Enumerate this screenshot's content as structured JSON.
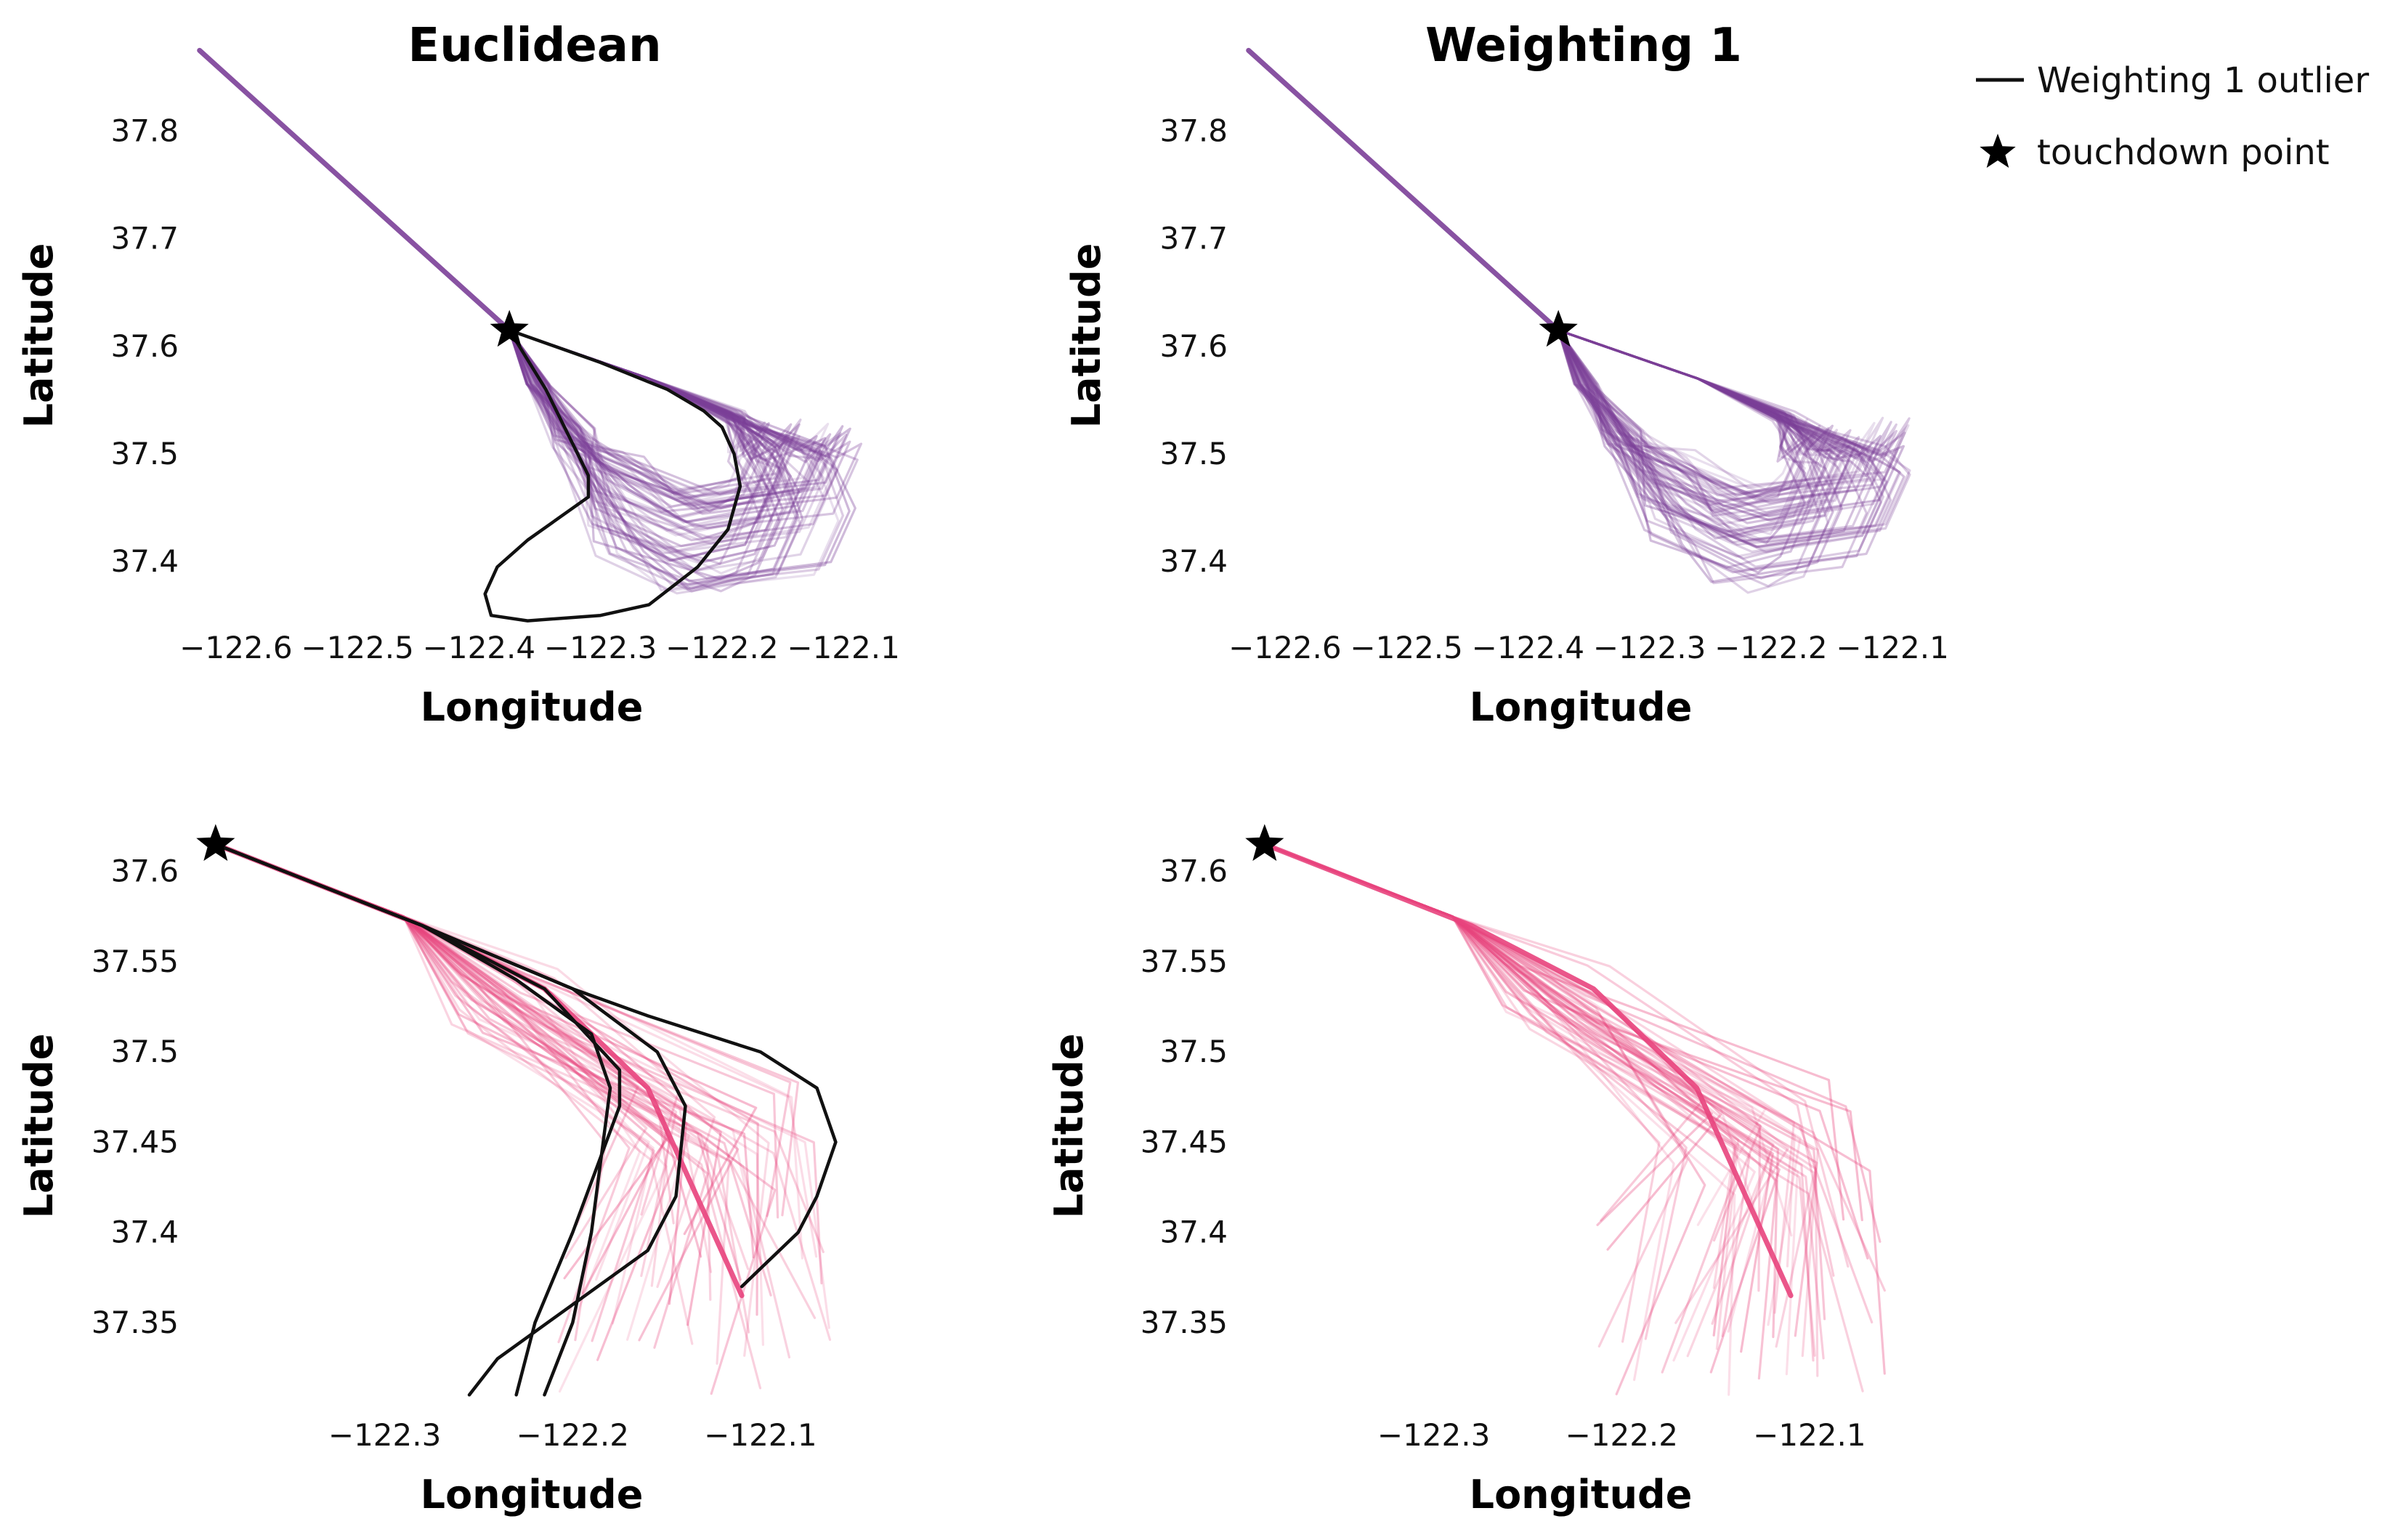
{
  "legend": {
    "outlier_label": "Weighting 1 outlier",
    "touchdown_label": "touchdown point",
    "outlier_color": "#111111"
  },
  "chart_data": [
    {
      "id": "top-left",
      "type": "line",
      "title": "Euclidean",
      "xlabel": "Longitude",
      "ylabel": "Latitude",
      "xlim": [
        -122.64,
        -122.06
      ],
      "ylim": [
        37.34,
        37.88
      ],
      "xticks": [
        -122.6,
        -122.5,
        -122.4,
        -122.3,
        -122.2,
        -122.1
      ],
      "xtick_labels": [
        "−122.6",
        "−122.5",
        "−122.4",
        "−122.3",
        "−122.2",
        "−122.1"
      ],
      "yticks": [
        37.4,
        37.5,
        37.6,
        37.7,
        37.8
      ],
      "ytick_labels": [
        "37.4",
        "37.5",
        "37.6",
        "37.7",
        "37.8"
      ],
      "color": "#7b3f98",
      "bundle_count": 60,
      "touchdown": [
        -122.375,
        37.615
      ],
      "shared_path": [
        [
          -122.63,
          37.875
        ],
        [
          -122.375,
          37.615
        ]
      ],
      "bundle_type": "loop",
      "outliers": [
        [
          [
            -122.375,
            37.615
          ],
          [
            -122.345,
            37.56
          ],
          [
            -122.31,
            37.48
          ],
          [
            -122.31,
            37.46
          ],
          [
            -122.36,
            37.42
          ],
          [
            -122.385,
            37.395
          ],
          [
            -122.395,
            37.37
          ],
          [
            -122.39,
            37.35
          ],
          [
            -122.36,
            37.345
          ],
          [
            -122.3,
            37.35
          ],
          [
            -122.26,
            37.36
          ],
          [
            -122.22,
            37.395
          ],
          [
            -122.195,
            37.43
          ],
          [
            -122.185,
            37.47
          ],
          [
            -122.19,
            37.5
          ],
          [
            -122.2,
            37.525
          ],
          [
            -122.215,
            37.54
          ],
          [
            -122.245,
            37.56
          ],
          [
            -122.3,
            37.585
          ],
          [
            -122.375,
            37.615
          ]
        ]
      ]
    },
    {
      "id": "top-right",
      "type": "line",
      "title": "Weighting 1",
      "xlabel": "Longitude",
      "ylabel": "Latitude",
      "xlim": [
        -122.64,
        -122.06
      ],
      "ylim": [
        37.34,
        37.88
      ],
      "xticks": [
        -122.6,
        -122.5,
        -122.4,
        -122.3,
        -122.2,
        -122.1
      ],
      "xtick_labels": [
        "−122.6",
        "−122.5",
        "−122.4",
        "−122.3",
        "−122.2",
        "−122.1"
      ],
      "yticks": [
        37.4,
        37.5,
        37.6,
        37.7,
        37.8
      ],
      "ytick_labels": [
        "37.4",
        "37.5",
        "37.6",
        "37.7",
        "37.8"
      ],
      "color": "#7b3f98",
      "bundle_count": 60,
      "touchdown": [
        -122.375,
        37.615
      ],
      "shared_path": [
        [
          -122.63,
          37.875
        ],
        [
          -122.375,
          37.615
        ]
      ],
      "bundle_type": "loop",
      "outliers": []
    },
    {
      "id": "bottom-left",
      "type": "line",
      "title": "",
      "xlabel": "Longitude",
      "ylabel": "Latitude",
      "xlim": [
        -122.405,
        -122.03
      ],
      "ylim": [
        37.3,
        37.62
      ],
      "xticks": [
        -122.3,
        -122.2,
        -122.1
      ],
      "xtick_labels": [
        "−122.3",
        "−122.2",
        "−122.1"
      ],
      "yticks": [
        37.35,
        37.4,
        37.45,
        37.5,
        37.55,
        37.6
      ],
      "ytick_labels": [
        "37.35",
        "37.4",
        "37.45",
        "37.5",
        "37.55",
        "37.6"
      ],
      "color": "#e8447d",
      "bundle_count": 50,
      "touchdown": [
        -122.39,
        37.615
      ],
      "shared_path": [
        [
          -122.39,
          37.615
        ],
        [
          -122.28,
          37.57
        ],
        [
          -122.215,
          37.535
        ],
        [
          -122.16,
          37.48
        ],
        [
          -122.11,
          37.365
        ]
      ],
      "bundle_type": "fan",
      "outliers": [
        [
          [
            -122.39,
            37.615
          ],
          [
            -122.28,
            37.57
          ],
          [
            -122.215,
            37.535
          ],
          [
            -122.175,
            37.49
          ],
          [
            -122.175,
            37.47
          ],
          [
            -122.2,
            37.4
          ],
          [
            -122.22,
            37.35
          ],
          [
            -122.23,
            37.31
          ]
        ],
        [
          [
            -122.39,
            37.615
          ],
          [
            -122.28,
            37.57
          ],
          [
            -122.23,
            37.54
          ],
          [
            -122.19,
            37.51
          ],
          [
            -122.18,
            37.48
          ],
          [
            -122.19,
            37.4
          ],
          [
            -122.2,
            37.35
          ],
          [
            -122.215,
            37.31
          ]
        ],
        [
          [
            -122.39,
            37.615
          ],
          [
            -122.28,
            37.57
          ],
          [
            -122.2,
            37.535
          ],
          [
            -122.155,
            37.5
          ],
          [
            -122.14,
            37.47
          ],
          [
            -122.145,
            37.42
          ],
          [
            -122.16,
            37.39
          ],
          [
            -122.2,
            37.36
          ],
          [
            -122.24,
            37.33
          ],
          [
            -122.255,
            37.31
          ]
        ],
        [
          [
            -122.39,
            37.615
          ],
          [
            -122.28,
            37.57
          ],
          [
            -122.2,
            37.535
          ],
          [
            -122.16,
            37.52
          ],
          [
            -122.1,
            37.5
          ],
          [
            -122.07,
            37.48
          ],
          [
            -122.06,
            37.45
          ],
          [
            -122.07,
            37.42
          ],
          [
            -122.08,
            37.4
          ],
          [
            -122.1,
            37.38
          ],
          [
            -122.11,
            37.37
          ]
        ]
      ]
    },
    {
      "id": "bottom-right",
      "type": "line",
      "title": "",
      "xlabel": "Longitude",
      "ylabel": "Latitude",
      "xlim": [
        -122.405,
        -122.03
      ],
      "ylim": [
        37.3,
        37.62
      ],
      "xticks": [
        -122.3,
        -122.2,
        -122.1
      ],
      "xtick_labels": [
        "−122.3",
        "−122.2",
        "−122.1"
      ],
      "yticks": [
        37.35,
        37.4,
        37.45,
        37.5,
        37.55,
        37.6
      ],
      "ytick_labels": [
        "37.35",
        "37.4",
        "37.45",
        "37.5",
        "37.55",
        "37.6"
      ],
      "color": "#e8447d",
      "bundle_count": 50,
      "touchdown": [
        -122.39,
        37.615
      ],
      "shared_path": [
        [
          -122.39,
          37.615
        ],
        [
          -122.28,
          37.57
        ],
        [
          -122.215,
          37.535
        ],
        [
          -122.16,
          37.48
        ],
        [
          -122.11,
          37.365
        ]
      ],
      "bundle_type": "fan",
      "outliers": []
    }
  ]
}
